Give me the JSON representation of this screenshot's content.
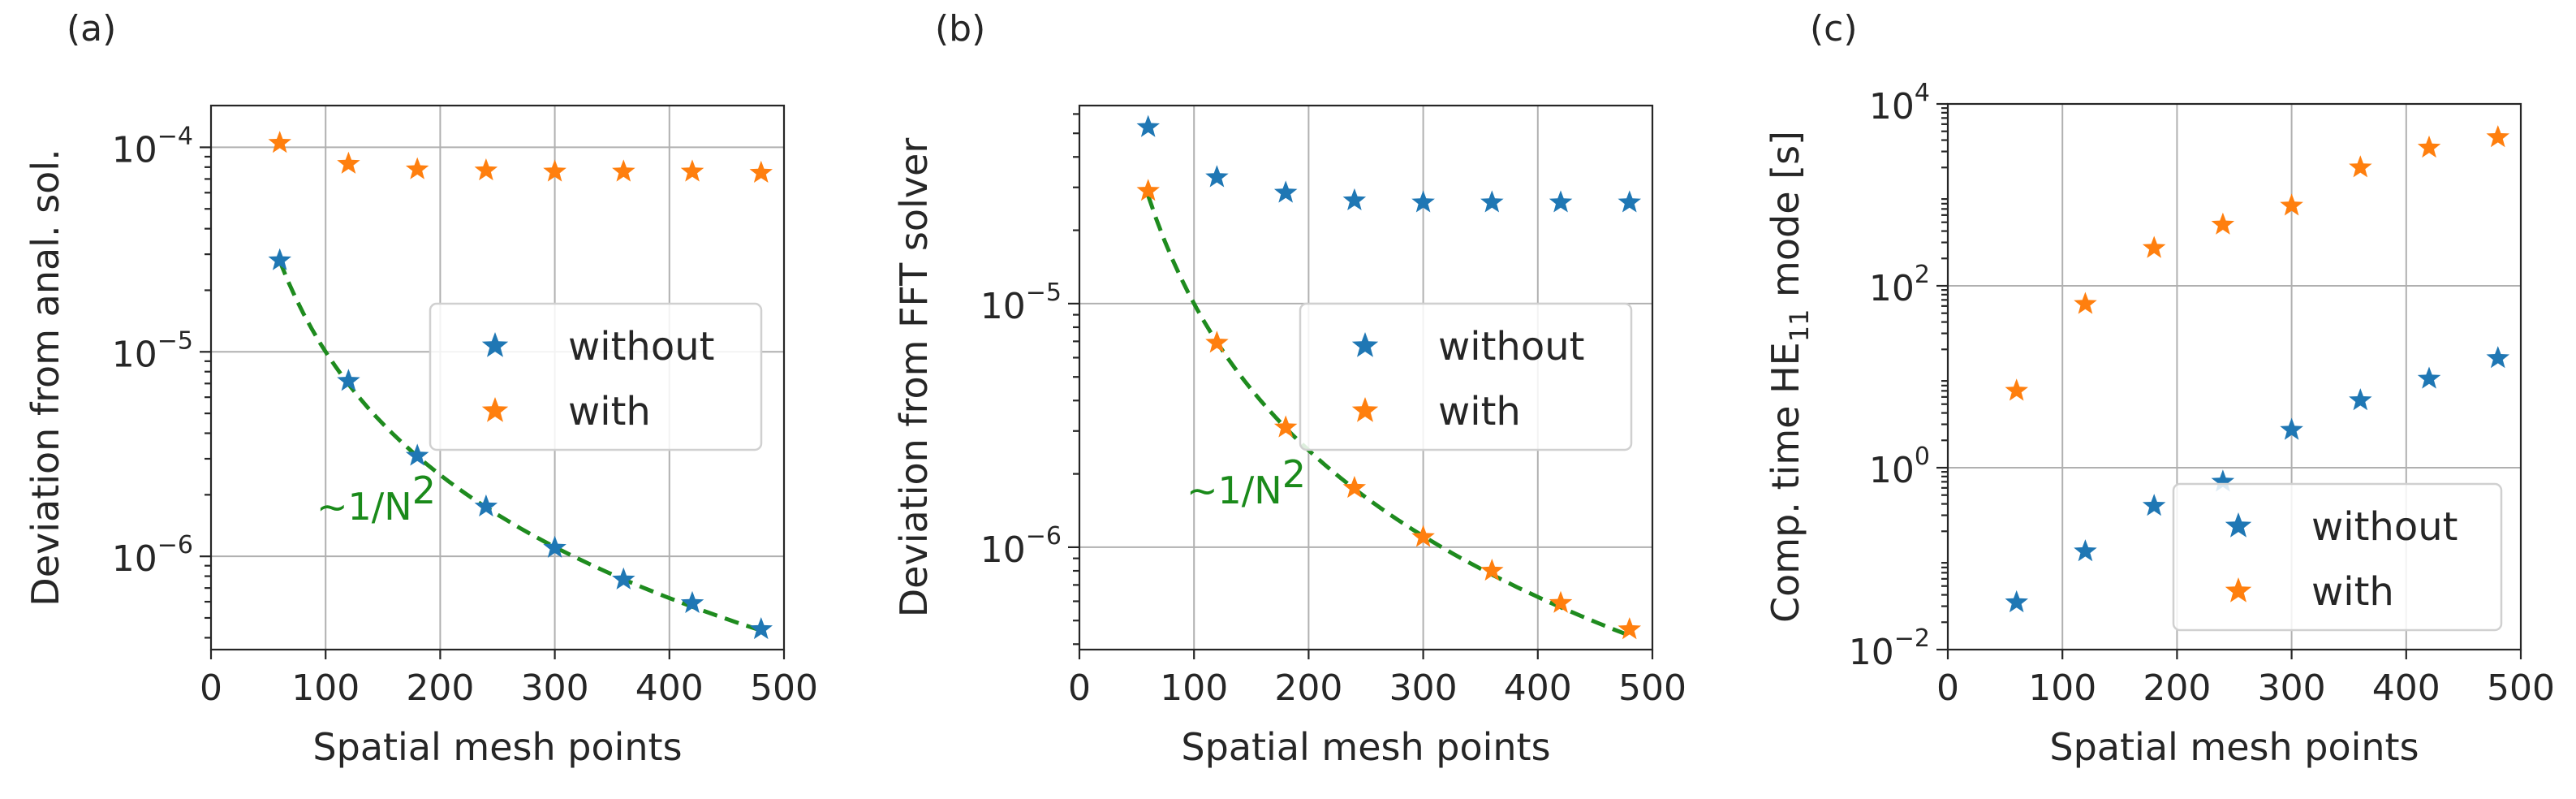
{
  "chart_data": [
    {
      "type": "scatter",
      "panel_label": "(a)",
      "xlabel": "Spatial mesh points",
      "ylabel": "Deviation from anal. sol.",
      "xlim": [
        0,
        500
      ],
      "ylim": [
        3.5e-07,
        0.00016
      ],
      "yscale": "log",
      "xticks": [
        "0",
        "100",
        "200",
        "300",
        "400",
        "500"
      ],
      "yticks": [
        {
          "value": 1e-06,
          "base": "10",
          "exp": "−6"
        },
        {
          "value": 1e-05,
          "base": "10",
          "exp": "−5"
        },
        {
          "value": 0.0001,
          "base": "10",
          "exp": "−4"
        }
      ],
      "grid": true,
      "legend": {
        "placement": "center-right",
        "entries": [
          "without",
          "with"
        ]
      },
      "series": [
        {
          "name": "without",
          "color": "#1f77b4",
          "marker": "star",
          "x": [
            60,
            120,
            180,
            240,
            300,
            360,
            420,
            480
          ],
          "y": [
            2.8e-05,
            7.2e-06,
            3.1e-06,
            1.75e-06,
            1.1e-06,
            7.7e-07,
            5.9e-07,
            4.4e-07
          ]
        },
        {
          "name": "with",
          "color": "#ff7f0e",
          "marker": "star",
          "x": [
            60,
            120,
            180,
            240,
            300,
            360,
            420,
            480
          ],
          "y": [
            0.000105,
            8.3e-05,
            7.8e-05,
            7.7e-05,
            7.6e-05,
            7.6e-05,
            7.6e-05,
            7.5e-05
          ]
        }
      ],
      "fit": {
        "label_main": "~1/N",
        "label_sup": "2",
        "color": "#1e8b1e",
        "style": "dashed",
        "x_from": 60,
        "x_to": 480,
        "amplitude": 0.1,
        "exponent": 2
      }
    },
    {
      "type": "scatter",
      "panel_label": "(b)",
      "xlabel": "Spatial mesh points",
      "ylabel": "Deviation from FFT solver",
      "xlim": [
        0,
        500
      ],
      "ylim": [
        3.8e-07,
        6.5e-05
      ],
      "yscale": "log",
      "xticks": [
        "0",
        "100",
        "200",
        "300",
        "400",
        "500"
      ],
      "yticks": [
        {
          "value": 1e-06,
          "base": "10",
          "exp": "−6"
        },
        {
          "value": 1e-05,
          "base": "10",
          "exp": "−5"
        }
      ],
      "grid": true,
      "legend": {
        "placement": "center-right",
        "entries": [
          "without",
          "with"
        ]
      },
      "series": [
        {
          "name": "without",
          "color": "#1f77b4",
          "marker": "star",
          "x": [
            60,
            120,
            180,
            240,
            300,
            360,
            420,
            480
          ],
          "y": [
            5.3e-05,
            3.3e-05,
            2.85e-05,
            2.65e-05,
            2.6e-05,
            2.6e-05,
            2.6e-05,
            2.6e-05
          ]
        },
        {
          "name": "with",
          "color": "#ff7f0e",
          "marker": "star",
          "x": [
            60,
            120,
            180,
            240,
            300,
            360,
            420,
            480
          ],
          "y": [
            2.9e-05,
            6.9e-06,
            3.1e-06,
            1.75e-06,
            1.1e-06,
            8e-07,
            5.9e-07,
            4.6e-07
          ]
        }
      ],
      "fit": {
        "label_main": "~1/N",
        "label_sup": "2",
        "color": "#1e8b1e",
        "style": "dashed",
        "x_from": 60,
        "x_to": 480,
        "amplitude": 0.1,
        "exponent": 2
      }
    },
    {
      "type": "scatter",
      "panel_label": "(c)",
      "xlabel": "Spatial mesh points",
      "ylabel_main": "Comp. time HE",
      "ylabel_sub": "11",
      "ylabel_tail": " mode [s]",
      "xlim": [
        0,
        500
      ],
      "ylim": [
        0.01,
        10000
      ],
      "yscale": "log",
      "xticks": [
        "0",
        "100",
        "200",
        "300",
        "400",
        "500"
      ],
      "yticks": [
        {
          "value": 0.01,
          "base": "10",
          "exp": "−2"
        },
        {
          "value": 1,
          "base": "10",
          "exp": "0"
        },
        {
          "value": 100,
          "base": "10",
          "exp": "2"
        },
        {
          "value": 10000,
          "base": "10",
          "exp": "4"
        }
      ],
      "grid": true,
      "legend": {
        "placement": "lower-right",
        "entries": [
          "without",
          "with"
        ]
      },
      "series": [
        {
          "name": "without",
          "color": "#1f77b4",
          "marker": "star",
          "x": [
            60,
            120,
            180,
            240,
            300,
            360,
            420,
            480
          ],
          "y": [
            0.033,
            0.12,
            0.38,
            0.7,
            2.6,
            5.5,
            9.5,
            16
          ]
        },
        {
          "name": "with",
          "color": "#ff7f0e",
          "marker": "star",
          "x": [
            60,
            120,
            180,
            240,
            300,
            360,
            420,
            480
          ],
          "y": [
            7,
            63,
            260,
            470,
            760,
            2000,
            3300,
            4300
          ]
        }
      ]
    }
  ]
}
